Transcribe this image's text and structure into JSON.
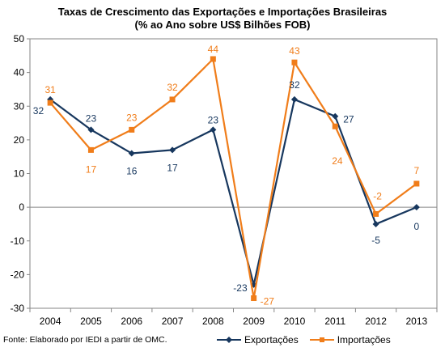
{
  "chart_data": {
    "type": "line",
    "title_lines": [
      "Taxas de Crescimento das Exportações e Importações Brasileiras",
      "(% ao Ano sobre US$ Bilhões FOB)"
    ],
    "x": [
      "2004",
      "2005",
      "2006",
      "2007",
      "2008",
      "2009",
      "2010",
      "2011",
      "2012",
      "2013"
    ],
    "ylim": [
      -30,
      50
    ],
    "yticks": [
      50,
      40,
      30,
      20,
      10,
      0,
      -10,
      -20,
      -30
    ],
    "grid": false,
    "legend_position": "bottom-right",
    "source_note": "Fonte: Elaborado por IEDI a partir de OMC.",
    "series": [
      {
        "name": "Exportações",
        "color": "#17375e",
        "marker": "diamond",
        "values": [
          32,
          23,
          16,
          17,
          23,
          -23,
          32,
          27,
          -5,
          0
        ],
        "labels": [
          "32",
          "23",
          "16",
          "17",
          "23",
          "-23",
          "32",
          "27",
          "-5",
          "0"
        ]
      },
      {
        "name": "Importações",
        "color": "#f07d1a",
        "marker": "square",
        "values": [
          31,
          17,
          23,
          32,
          44,
          -27,
          43,
          24,
          -2,
          7
        ],
        "labels": [
          "31",
          "17",
          "23",
          "32",
          "44",
          "-27",
          "43",
          "24",
          "-2",
          "7"
        ]
      }
    ]
  }
}
